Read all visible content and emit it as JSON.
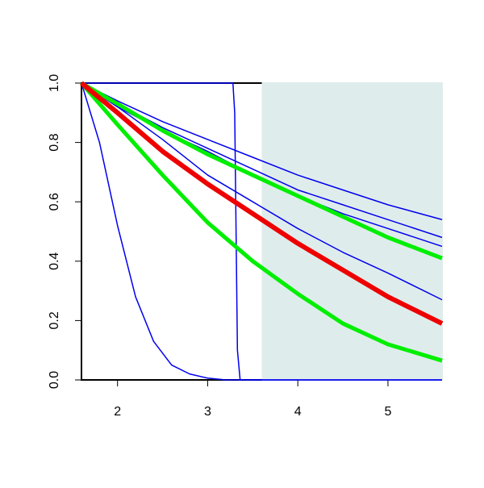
{
  "chart_data": {
    "type": "line",
    "xlim": [
      1.6,
      5.6
    ],
    "ylim": [
      0,
      1
    ],
    "xticks": [
      2,
      3,
      4,
      5
    ],
    "yticks": [
      {
        "value": 0,
        "label": "0.0"
      },
      {
        "value": 0.2,
        "label": "0.2"
      },
      {
        "value": 0.4,
        "label": "0.4"
      },
      {
        "value": 0.6,
        "label": "0.6"
      },
      {
        "value": 0.8,
        "label": "0.8"
      },
      {
        "value": 1,
        "label": "1.0"
      }
    ],
    "shaded_region": {
      "xlim": [
        3.6,
        5.6
      ],
      "color": "#dfecec"
    },
    "series": [
      {
        "color": "#0000ee",
        "line_width": 1.5,
        "x": [
          1.6,
          2,
          2.5,
          3,
          3.5,
          4,
          4.5,
          5,
          5.6
        ],
        "values": [
          1,
          0.94,
          0.87,
          0.81,
          0.75,
          0.69,
          0.64,
          0.59,
          0.54
        ]
      },
      {
        "color": "#0000ee",
        "line_width": 1.5,
        "x": [
          1.6,
          2,
          2.5,
          3,
          3.5,
          4,
          4.5,
          5,
          5.6
        ],
        "values": [
          1,
          0.93,
          0.85,
          0.78,
          0.71,
          0.64,
          0.59,
          0.54,
          0.48
        ]
      },
      {
        "color": "#0000ee",
        "line_width": 1.5,
        "x": [
          1.6,
          2,
          2.5,
          3,
          3.5,
          4,
          4.5,
          5,
          5.6
        ],
        "values": [
          1,
          0.92,
          0.84,
          0.77,
          0.69,
          0.62,
          0.56,
          0.51,
          0.45
        ]
      },
      {
        "color": "#0000ee",
        "line_width": 1.5,
        "x": [
          1.6,
          2,
          2.5,
          3,
          3.5,
          4,
          4.5,
          5,
          5.6
        ],
        "values": [
          1,
          0.92,
          0.81,
          0.69,
          0.6,
          0.51,
          0.43,
          0.36,
          0.27
        ]
      },
      {
        "color": "#0000ee",
        "line_width": 1.5,
        "x": [
          1.6,
          1.8,
          2.0,
          2.2,
          2.4,
          2.6,
          2.8,
          3.0,
          3.2,
          5.6
        ],
        "values": [
          1,
          0.8,
          0.52,
          0.28,
          0.13,
          0.05,
          0.02,
          0.006,
          0,
          0
        ]
      },
      {
        "color": "#0000ee",
        "line_width": 1.5,
        "x": [
          1.6,
          3.28,
          3.3,
          3.33,
          3.36,
          5.6
        ],
        "values": [
          1,
          1,
          0.9,
          0.1,
          0,
          0
        ]
      },
      {
        "color": "#00ee00",
        "line_width": 5,
        "x": [
          1.6,
          2,
          2.5,
          3,
          3.5,
          4,
          4.5,
          5,
          5.6
        ],
        "values": [
          1,
          0.93,
          0.84,
          0.76,
          0.69,
          0.62,
          0.55,
          0.48,
          0.41
        ]
      },
      {
        "color": "#00ee00",
        "line_width": 5,
        "x": [
          1.6,
          2,
          2.5,
          3,
          3.5,
          4,
          4.5,
          5,
          5.6
        ],
        "values": [
          1,
          0.86,
          0.69,
          0.53,
          0.4,
          0.29,
          0.19,
          0.12,
          0.065
        ]
      },
      {
        "color": "#ee0000",
        "line_width": 6,
        "x": [
          1.6,
          2,
          2.5,
          3,
          3.5,
          4,
          4.5,
          5,
          5.6
        ],
        "values": [
          1,
          0.9,
          0.77,
          0.66,
          0.56,
          0.46,
          0.37,
          0.28,
          0.19
        ]
      }
    ]
  }
}
